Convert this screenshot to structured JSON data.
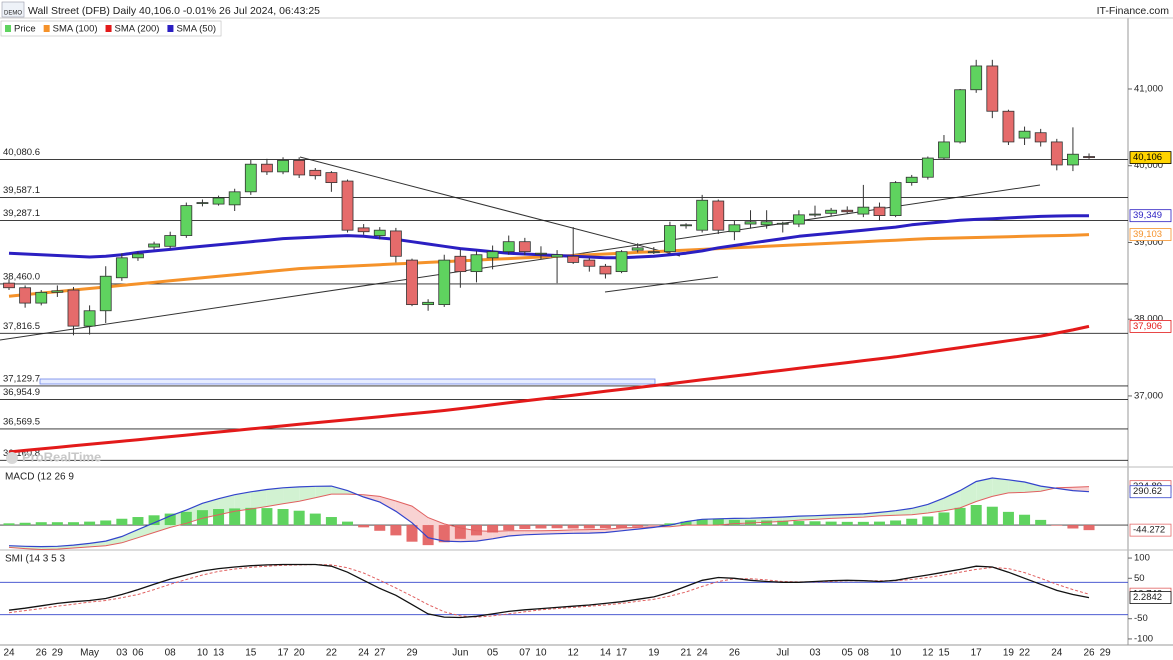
{
  "chart_data": [
    {
      "type": "candlestick",
      "title": "Wall Street (DFB) Daily 40,106.0 -0.01% 26 Jul 2024, 06:43:25",
      "source": "IT-Finance.com",
      "badge": "DEMO",
      "watermark": "ProRealTime",
      "name": "Price",
      "up_color": "#5fd35f",
      "down_color": "#e56b6b",
      "categories": [
        "24",
        null,
        "26",
        "29",
        null,
        "May",
        null,
        "03",
        "06",
        null,
        "08",
        null,
        "10",
        "13",
        null,
        "15",
        null,
        "17",
        "20",
        null,
        "22",
        null,
        "24",
        "27",
        null,
        "29",
        null,
        null,
        "Jun",
        null,
        "05",
        null,
        "07",
        "10",
        null,
        "12",
        null,
        "14",
        "17",
        null,
        "19",
        null,
        "21",
        "24",
        null,
        "26",
        null,
        null,
        "Jul",
        null,
        "03",
        null,
        "05",
        "08",
        null,
        "10",
        null,
        "12",
        "15",
        null,
        "17",
        null,
        "19",
        "22",
        null,
        "24",
        null,
        "26",
        "29"
      ],
      "open": [
        38470,
        38410,
        38210,
        38350,
        38380,
        37910,
        38110,
        38540,
        38800,
        38940,
        38950,
        39090,
        39510,
        39500,
        39490,
        39660,
        40020,
        39920,
        40070,
        39940,
        39910,
        39800,
        39190,
        39090,
        39150,
        38770,
        38190,
        38190,
        38820,
        38620,
        38800,
        38880,
        39010,
        38850,
        38810,
        38820,
        38770,
        38690,
        38620,
        38900,
        38880,
        38880,
        39220,
        39160,
        39540,
        39140,
        39240,
        39230,
        39240,
        39240,
        39360,
        39380,
        39420,
        39370,
        39460,
        39350,
        39780,
        39850,
        40100,
        40310,
        40990,
        41300,
        40710,
        40360,
        40430,
        40310,
        40010,
        40120,
        null
      ],
      "high": [
        38520,
        38440,
        38380,
        38440,
        38420,
        38180,
        38690,
        38860,
        38880,
        39010,
        39140,
        39520,
        39560,
        39610,
        39700,
        40080,
        40090,
        40110,
        40110,
        39970,
        39930,
        39820,
        39240,
        39200,
        39190,
        38790,
        38260,
        38840,
        38910,
        38890,
        38960,
        39090,
        39060,
        38950,
        38900,
        39200,
        38800,
        38720,
        38900,
        38990,
        38940,
        39270,
        39250,
        39620,
        39560,
        39280,
        39420,
        39420,
        39270,
        39420,
        39480,
        39450,
        39470,
        39750,
        39520,
        39800,
        39880,
        40120,
        40400,
        41000,
        41380,
        41380,
        40730,
        40510,
        40480,
        40350,
        40500,
        40160,
        null
      ],
      "low": [
        38380,
        38150,
        38180,
        38290,
        37790,
        37800,
        37950,
        38500,
        38760,
        38910,
        38920,
        39060,
        39470,
        39480,
        39410,
        39620,
        39880,
        39890,
        39840,
        39820,
        39660,
        39130,
        39100,
        39040,
        38740,
        38170,
        38110,
        38160,
        38410,
        38480,
        38650,
        38840,
        38830,
        38780,
        38470,
        38720,
        38620,
        38530,
        38600,
        38870,
        38850,
        38860,
        39180,
        39130,
        39110,
        39030,
        39180,
        39180,
        39130,
        39200,
        39330,
        39340,
        39370,
        39330,
        39280,
        39330,
        39740,
        39820,
        40080,
        40290,
        40950,
        40620,
        40270,
        40270,
        40250,
        39940,
        39930,
        40090,
        null
      ],
      "close": [
        38410,
        38210,
        38350,
        38370,
        37910,
        38110,
        38560,
        38800,
        38850,
        38980,
        39090,
        39480,
        39520,
        39580,
        39660,
        40020,
        39920,
        40070,
        39880,
        39870,
        39780,
        39160,
        39140,
        39160,
        38820,
        38190,
        38220,
        38770,
        38620,
        38840,
        38880,
        39010,
        38880,
        38860,
        38840,
        38740,
        38690,
        38590,
        38880,
        38930,
        38880,
        39220,
        39230,
        39550,
        39160,
        39230,
        39270,
        39270,
        39250,
        39360,
        39370,
        39420,
        39400,
        39460,
        39350,
        39780,
        39850,
        40100,
        40310,
        40990,
        41300,
        40710,
        40310,
        40450,
        40310,
        40010,
        40150,
        40106,
        null
      ],
      "end_label": "40,106",
      "series": [
        {
          "name": "SMA (100)",
          "color": "#f5922a",
          "end_label": "39,103",
          "values": [
            38300,
            38320,
            38340,
            38360,
            38380,
            38400,
            38420,
            38440,
            38460,
            38480,
            38500,
            38520,
            38540,
            38560,
            38580,
            38600,
            38620,
            38640,
            38660,
            38670,
            38680,
            38690,
            38700,
            38710,
            38720,
            38730,
            38740,
            38750,
            38760,
            38770,
            38780,
            38790,
            38800,
            38810,
            38820,
            38830,
            38840,
            38850,
            38860,
            38870,
            38880,
            38890,
            38900,
            38910,
            38920,
            38930,
            38940,
            38950,
            38960,
            38970,
            38980,
            38990,
            39000,
            39010,
            39020,
            39030,
            39040,
            39050,
            39055,
            39060,
            39065,
            39070,
            39075,
            39080,
            39085,
            39090,
            39095,
            39103,
            null
          ]
        },
        {
          "name": "SMA (200)",
          "color": "#e31a1a",
          "end_label": "37,906",
          "values": [
            36270,
            36290,
            36310,
            36330,
            36350,
            36370,
            36390,
            36410,
            36430,
            36450,
            36470,
            36490,
            36510,
            36530,
            36550,
            36570,
            36590,
            36610,
            36630,
            36650,
            36670,
            36690,
            36710,
            36730,
            36750,
            36770,
            36790,
            36810,
            36835,
            36860,
            36885,
            36910,
            36935,
            36960,
            36985,
            37010,
            37035,
            37060,
            37085,
            37110,
            37135,
            37160,
            37185,
            37210,
            37235,
            37260,
            37285,
            37310,
            37335,
            37360,
            37385,
            37410,
            37435,
            37460,
            37485,
            37510,
            37540,
            37570,
            37600,
            37630,
            37660,
            37690,
            37720,
            37750,
            37780,
            37820,
            37860,
            37906,
            null
          ]
        },
        {
          "name": "SMA (50)",
          "color": "#2b1fc2",
          "end_label": "39,349",
          "values": [
            38860,
            38850,
            38840,
            38830,
            38820,
            38810,
            38820,
            38840,
            38870,
            38890,
            38910,
            38930,
            38950,
            38970,
            38990,
            39010,
            39030,
            39050,
            39060,
            39070,
            39080,
            39090,
            39080,
            39060,
            39040,
            39010,
            38980,
            38950,
            38920,
            38900,
            38880,
            38860,
            38850,
            38840,
            38830,
            38820,
            38810,
            38800,
            38800,
            38810,
            38820,
            38840,
            38860,
            38890,
            38930,
            38960,
            38990,
            39020,
            39050,
            39080,
            39100,
            39120,
            39140,
            39160,
            39180,
            39200,
            39230,
            39250,
            39270,
            39290,
            39300,
            39310,
            39320,
            39330,
            39340,
            39345,
            39347,
            39349,
            null
          ]
        }
      ],
      "levels": [
        {
          "value": 40080.6,
          "label": "40,080.6"
        },
        {
          "value": 39587.1,
          "label": "39,587.1"
        },
        {
          "value": 39287.1,
          "label": "39,287.1"
        },
        {
          "value": 38460.0,
          "label": "38,460.0"
        },
        {
          "value": 37816.5,
          "label": "37,816.5"
        },
        {
          "value": 37129.7,
          "label": "37,129.7"
        },
        {
          "value": 36954.9,
          "label": "36,954.9"
        },
        {
          "value": 36569.5,
          "label": "36,569.5"
        },
        {
          "value": 36160.8,
          "label": "36,160.8"
        }
      ],
      "ylim": [
        36100,
        41925
      ],
      "yticks": [
        {
          "value": 37000,
          "label": "37,000"
        },
        {
          "value": 38000,
          "label": "38,000"
        },
        {
          "value": 39000,
          "label": "39,000"
        },
        {
          "value": 40000,
          "label": "40,000"
        },
        {
          "value": 41000,
          "label": "41,000"
        }
      ]
    },
    {
      "type": "macd",
      "title": "MACD (12 26 9",
      "macd_color": "#3344cc",
      "signal_color": "#e06060",
      "histogram": [
        15,
        20,
        25,
        25,
        25,
        30,
        40,
        55,
        70,
        85,
        100,
        115,
        130,
        140,
        145,
        150,
        148,
        140,
        125,
        100,
        70,
        30,
        -20,
        -50,
        -90,
        -145,
        -175,
        -150,
        -120,
        -90,
        -65,
        -45,
        -35,
        -30,
        -28,
        -30,
        -30,
        -28,
        -25,
        -15,
        -5,
        15,
        30,
        50,
        55,
        45,
        42,
        40,
        38,
        35,
        33,
        30,
        28,
        28,
        30,
        40,
        55,
        75,
        110,
        150,
        175,
        160,
        115,
        90,
        45,
        -5,
        -30,
        -44.272,
        null
      ],
      "histogram_end_label": "-44.272",
      "macd": [
        -180,
        -185,
        -188,
        -185,
        -175,
        -160,
        -140,
        -100,
        -40,
        20,
        80,
        130,
        190,
        230,
        265,
        290,
        310,
        325,
        333,
        338,
        340,
        300,
        245,
        200,
        120,
        20,
        -110,
        -140,
        -145,
        -140,
        -120,
        -95,
        -85,
        -80,
        -75,
        -72,
        -70,
        -65,
        -50,
        -35,
        -20,
        0,
        30,
        50,
        55,
        58,
        60,
        65,
        70,
        78,
        82,
        88,
        92,
        97,
        110,
        125,
        145,
        180,
        235,
        300,
        380,
        410,
        395,
        375,
        340,
        320,
        300,
        290.62,
        null
      ],
      "macd_end_label": "290.62",
      "signal": [
        -195,
        -205,
        -213,
        -210,
        -200,
        -190,
        -180,
        -155,
        -110,
        -65,
        -20,
        15,
        60,
        90,
        120,
        140,
        162,
        185,
        208,
        238,
        270,
        270,
        265,
        250,
        210,
        165,
        65,
        10,
        -25,
        -50,
        -55,
        -50,
        -50,
        -50,
        -47,
        -42,
        -40,
        -37,
        -25,
        -20,
        -15,
        -15,
        0,
        0,
        0,
        13,
        18,
        25,
        32,
        43,
        49,
        58,
        64,
        69,
        80,
        85,
        90,
        105,
        125,
        150,
        205,
        250,
        280,
        285,
        295,
        325,
        330,
        334.89,
        null
      ],
      "signal_end_label": "334.89",
      "ylim": [
        -200,
        480
      ]
    },
    {
      "type": "smi",
      "title": "SMI (14 3 5 3",
      "smi_color": "#111111",
      "signal_color": "#e06060",
      "reference_lines": [
        40,
        -40
      ],
      "smi": [
        -29,
        -24,
        -18,
        -12,
        -8,
        -5,
        0,
        10,
        22,
        35,
        48,
        58,
        68,
        74,
        78,
        81,
        83,
        84,
        84,
        84,
        80,
        65,
        45,
        25,
        8,
        -15,
        -38,
        -46,
        -47,
        -44,
        -38,
        -32,
        -28,
        -25,
        -22,
        -19,
        -16,
        -12,
        -8,
        -2,
        4,
        15,
        30,
        45,
        52,
        50,
        45,
        42,
        40,
        40,
        42,
        44,
        45,
        44,
        42,
        45,
        52,
        58,
        65,
        72,
        80,
        78,
        65,
        50,
        35,
        20,
        10,
        2.2842,
        null
      ],
      "smi_end_label": "2.2842",
      "signal": [
        -35,
        -30,
        -25,
        -19,
        -14,
        -9,
        -5,
        2,
        10,
        22,
        35,
        47,
        58,
        67,
        73,
        77,
        80,
        82,
        83,
        84,
        83,
        76,
        63,
        45,
        26,
        6,
        -15,
        -33,
        -43,
        -46,
        -43,
        -38,
        -33,
        -28,
        -25,
        -22,
        -19,
        -16,
        -12,
        -7,
        -2,
        6,
        16,
        30,
        42,
        49,
        49,
        46,
        42,
        41,
        41,
        42,
        44,
        44,
        44,
        44,
        47,
        52,
        58,
        65,
        72,
        77,
        74,
        64,
        50,
        35,
        22,
        10.746,
        null
      ],
      "signal_end_label": "10.746",
      "ylim": [
        -115,
        115
      ],
      "yticks": [
        100,
        50,
        -50,
        -100
      ]
    }
  ]
}
